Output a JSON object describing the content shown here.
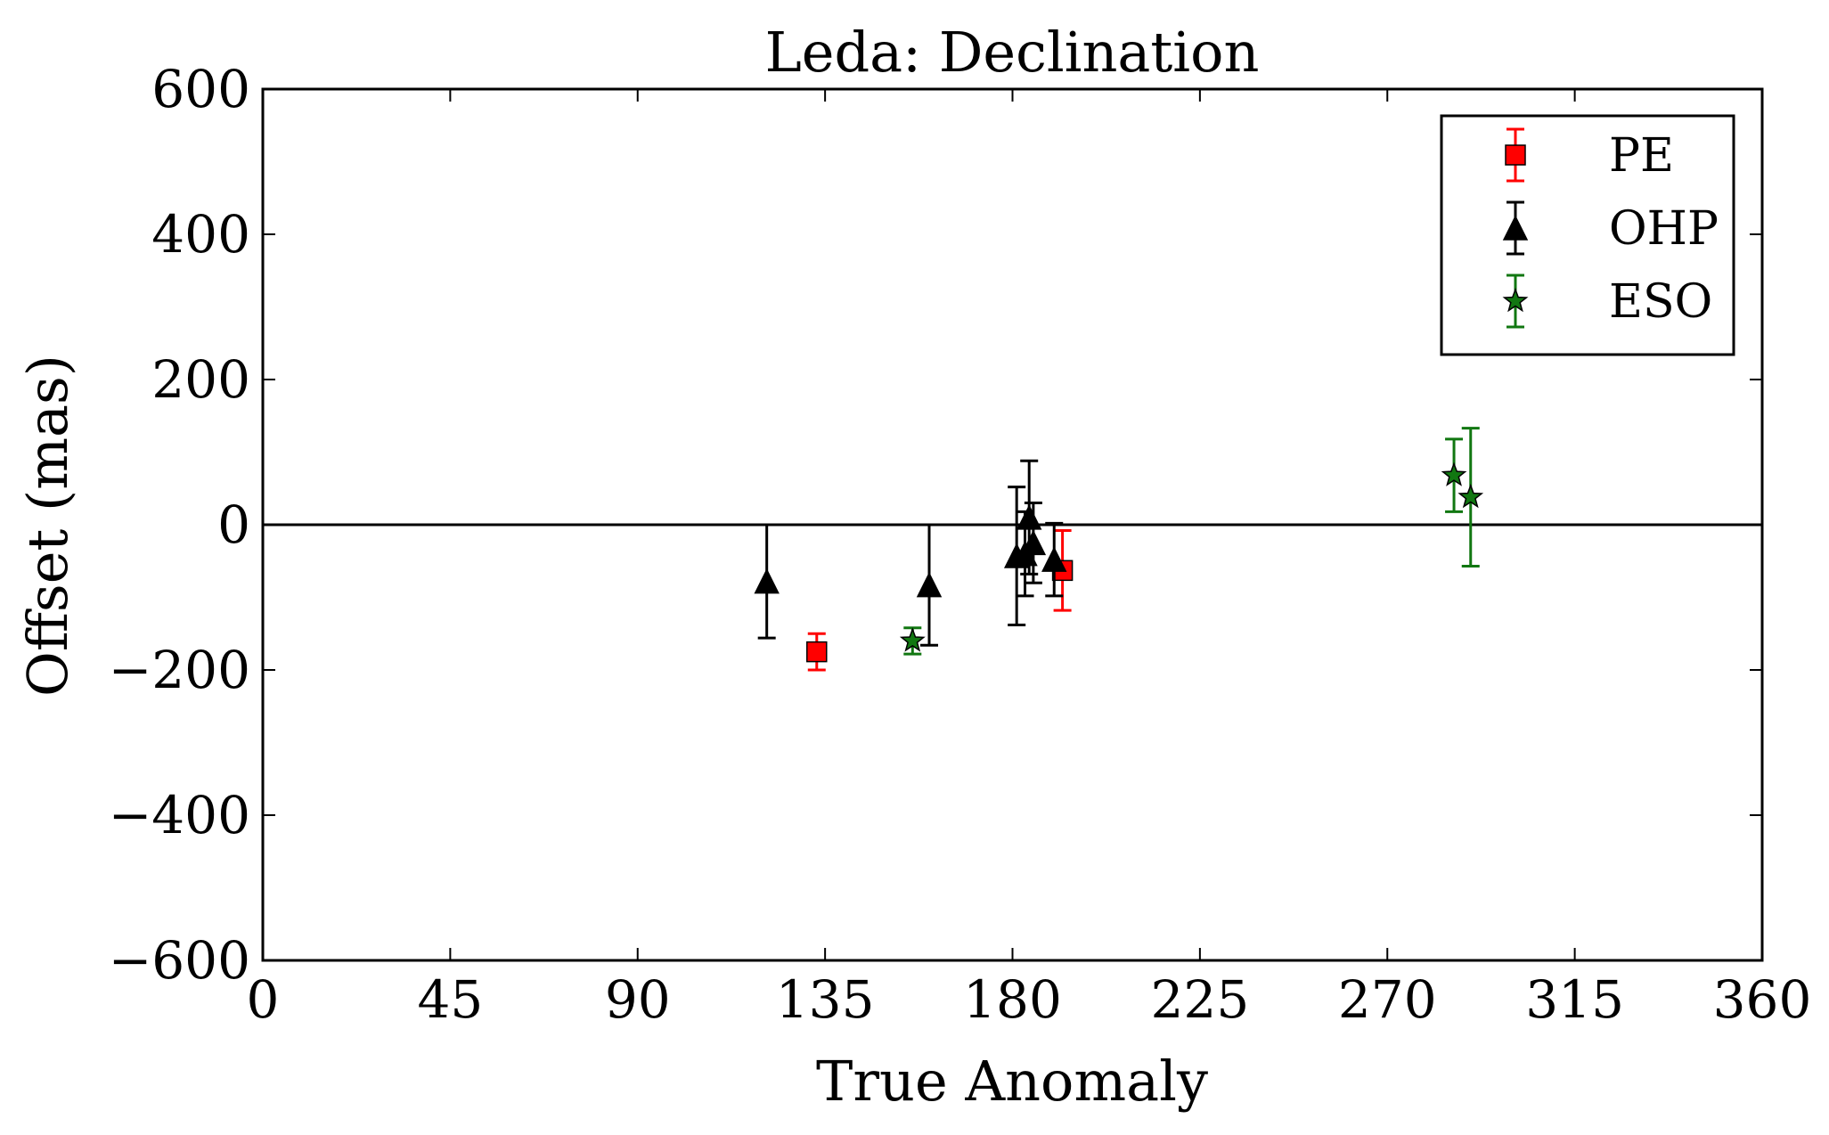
{
  "chart_data": {
    "type": "scatter",
    "title": "Leda: Declination",
    "xlabel": "True Anomaly",
    "ylabel": "Offset (mas)",
    "xlim": [
      0,
      360
    ],
    "ylim": [
      -600,
      600
    ],
    "xticks": [
      0,
      45,
      90,
      135,
      180,
      225,
      270,
      315,
      360
    ],
    "yticks": [
      -600,
      -400,
      -200,
      0,
      200,
      400,
      600
    ],
    "xtick_labels": [
      "0",
      "45",
      "90",
      "135",
      "180",
      "225",
      "270",
      "315",
      "360"
    ],
    "ytick_labels": [
      "−600",
      "−400",
      "−200",
      "0",
      "200",
      "400",
      "600"
    ],
    "grid": false,
    "zero_line": 0,
    "legend_position": "top-right",
    "series": [
      {
        "name": "PE",
        "marker": "square",
        "color": "#ff0000",
        "error_color": "#ff0000",
        "points": [
          {
            "x": 133,
            "y": -175,
            "err": 25
          },
          {
            "x": 192,
            "y": -63,
            "err": 55
          }
        ]
      },
      {
        "name": "OHP",
        "marker": "triangle",
        "color": "#000000",
        "error_color": "#000000",
        "points": [
          {
            "x": 121,
            "y": -78,
            "err": 78
          },
          {
            "x": 160,
            "y": -83,
            "err": 83
          },
          {
            "x": 181,
            "y": -43,
            "err": 95
          },
          {
            "x": 183,
            "y": -40,
            "err": 58
          },
          {
            "x": 184,
            "y": 10,
            "err": 78
          },
          {
            "x": 185,
            "y": -25,
            "err": 55
          },
          {
            "x": 190,
            "y": -48,
            "err": 50
          }
        ]
      },
      {
        "name": "ESO",
        "marker": "star",
        "color": "#117711",
        "error_color": "#117711",
        "points": [
          {
            "x": 156,
            "y": -160,
            "err": 18
          },
          {
            "x": 286,
            "y": 68,
            "err": 50
          },
          {
            "x": 290,
            "y": 38,
            "err": 95
          }
        ]
      }
    ]
  }
}
